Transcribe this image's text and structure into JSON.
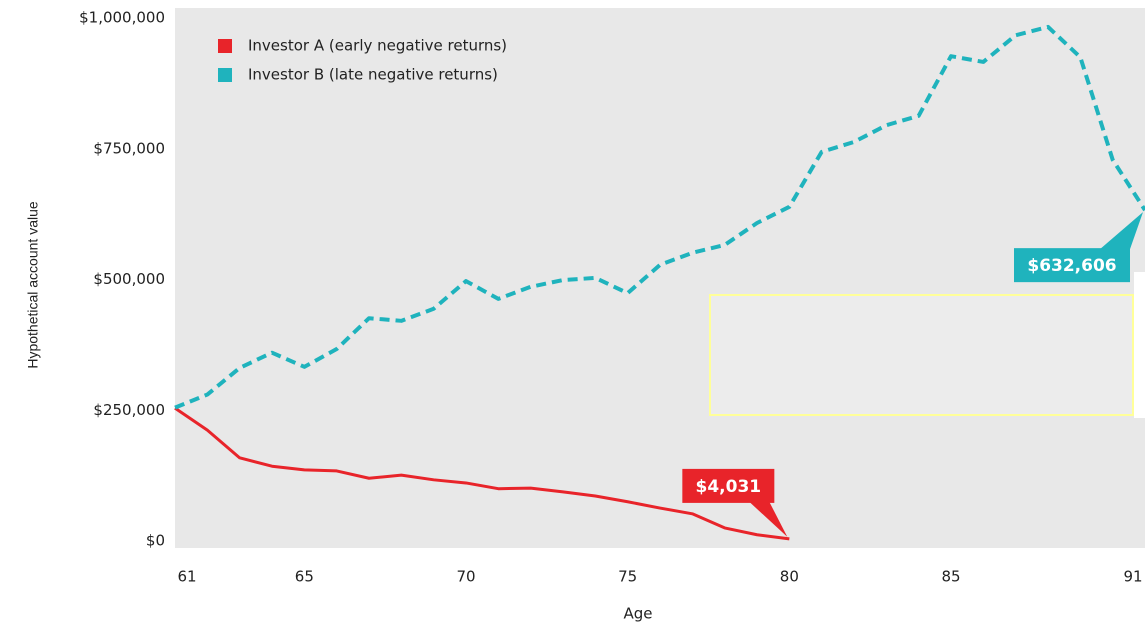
{
  "chart_data": {
    "type": "line",
    "xlabel": "Age",
    "ylabel": "Hypothetical account value",
    "xlim": [
      61,
      91
    ],
    "xticks": [
      61,
      65,
      70,
      75,
      80,
      85,
      91
    ],
    "ylim": [
      0,
      1000000
    ],
    "yticks": [
      {
        "value": 0,
        "label": "$0"
      },
      {
        "value": 250000,
        "label": "$250,000"
      },
      {
        "value": 500000,
        "label": "$500,000"
      },
      {
        "value": 750000,
        "label": "$750,000"
      },
      {
        "value": 1000000,
        "label": "$1,000,000"
      }
    ],
    "legend": "upper left",
    "series": [
      {
        "name": "Investor A (early negative returns)",
        "color": "#e8242a",
        "dashed": false,
        "x": [
          61,
          62,
          63,
          64,
          65,
          66,
          67,
          68,
          69,
          70,
          71,
          72,
          73,
          74,
          75,
          76,
          77,
          78,
          79,
          80
        ],
        "values": [
          254000,
          212000,
          159000,
          143000,
          136000,
          134000,
          120000,
          126000,
          117000,
          111000,
          100000,
          101000,
          94000,
          86000,
          75000,
          63000,
          52000,
          25000,
          12000,
          4031
        ],
        "value_labels": [
          null,
          null,
          null,
          null,
          null,
          null,
          null,
          null,
          null,
          null,
          null,
          null,
          null,
          null,
          null,
          null,
          null,
          null,
          null,
          "$4,031"
        ]
      },
      {
        "name": "Investor B (late negative returns)",
        "color": "#1fb3bd",
        "dashed": true,
        "x": [
          61,
          62,
          63,
          64,
          65,
          66,
          67,
          68,
          69,
          70,
          71,
          72,
          73,
          74,
          75,
          76,
          77,
          78,
          79,
          80,
          81,
          82,
          83,
          84,
          85,
          86,
          87,
          88,
          89,
          90,
          91
        ],
        "values": [
          255000,
          280000,
          331000,
          360000,
          333000,
          367000,
          426000,
          421000,
          444000,
          497000,
          463000,
          486000,
          499000,
          503000,
          474000,
          528000,
          551000,
          566000,
          608000,
          639000,
          744000,
          763000,
          795000,
          813000,
          927000,
          916000,
          967000,
          983000,
          925000,
          729000,
          632606
        ],
        "value_labels": [
          null,
          null,
          null,
          null,
          null,
          null,
          null,
          null,
          null,
          null,
          null,
          null,
          null,
          null,
          null,
          null,
          null,
          null,
          null,
          null,
          null,
          null,
          null,
          null,
          null,
          null,
          null,
          null,
          null,
          null,
          "$632,606"
        ]
      }
    ]
  }
}
